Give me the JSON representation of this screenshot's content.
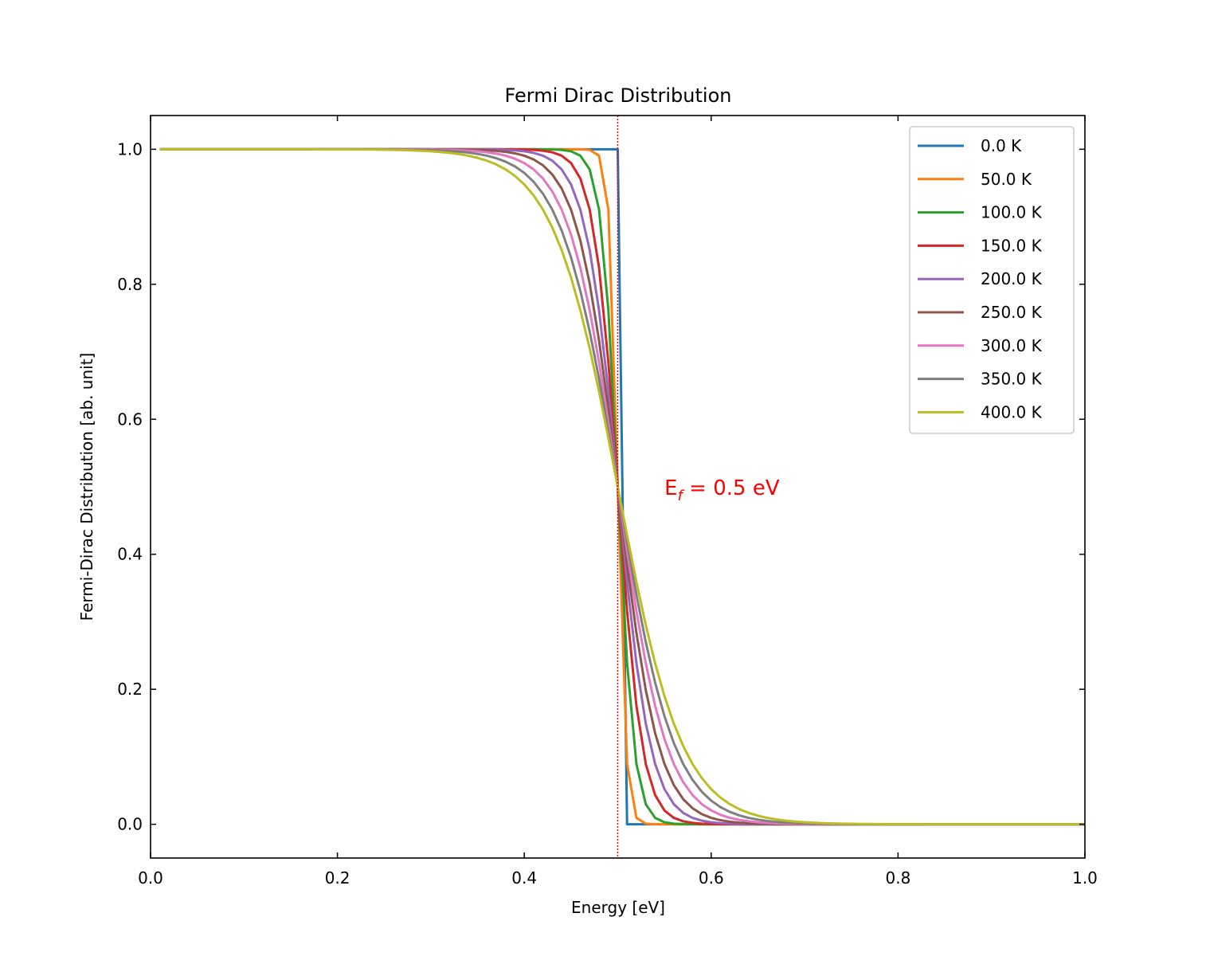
{
  "chart_data": {
    "type": "line",
    "title": "Fermi Dirac Distribution",
    "xlabel": "Energy [eV]",
    "ylabel": "Fermi-Dirac Distribution [ab. unit]",
    "xlim": [
      0.0,
      1.0
    ],
    "ylim": [
      -0.05,
      1.05
    ],
    "x_ticks": [
      "0.0",
      "0.2",
      "0.4",
      "0.6",
      "0.8",
      "1.0"
    ],
    "y_ticks": [
      "0.0",
      "0.2",
      "0.4",
      "0.6",
      "0.8",
      "1.0"
    ],
    "x_range": [
      0.01,
      1.0
    ],
    "x_step": 0.01,
    "fermi_energy_eV": 0.5,
    "boltzmann_eV_per_K": 8.617e-05,
    "grid": false,
    "legend_position": "top-right",
    "annotation": {
      "base": "E",
      "sub": "f",
      "rest": " = 0.5 eV",
      "x": 0.55,
      "y": 0.5,
      "color": "#ff0000"
    },
    "fermi_line": {
      "x": 0.5,
      "color": "#ff0000",
      "style": "dotted"
    },
    "series": [
      {
        "name": "0.0 K",
        "temperature_K": 0,
        "color": "#1f77b4"
      },
      {
        "name": "50.0 K",
        "temperature_K": 50,
        "color": "#ff7f0e"
      },
      {
        "name": "100.0 K",
        "temperature_K": 100,
        "color": "#2ca02c"
      },
      {
        "name": "150.0 K",
        "temperature_K": 150,
        "color": "#d62728"
      },
      {
        "name": "200.0 K",
        "temperature_K": 200,
        "color": "#9467bd"
      },
      {
        "name": "250.0 K",
        "temperature_K": 250,
        "color": "#8c564b"
      },
      {
        "name": "300.0 K",
        "temperature_K": 300,
        "color": "#e377c2"
      },
      {
        "name": "350.0 K",
        "temperature_K": 350,
        "color": "#7f7f7f"
      },
      {
        "name": "400.0 K",
        "temperature_K": 400,
        "color": "#bcbd22"
      }
    ]
  }
}
